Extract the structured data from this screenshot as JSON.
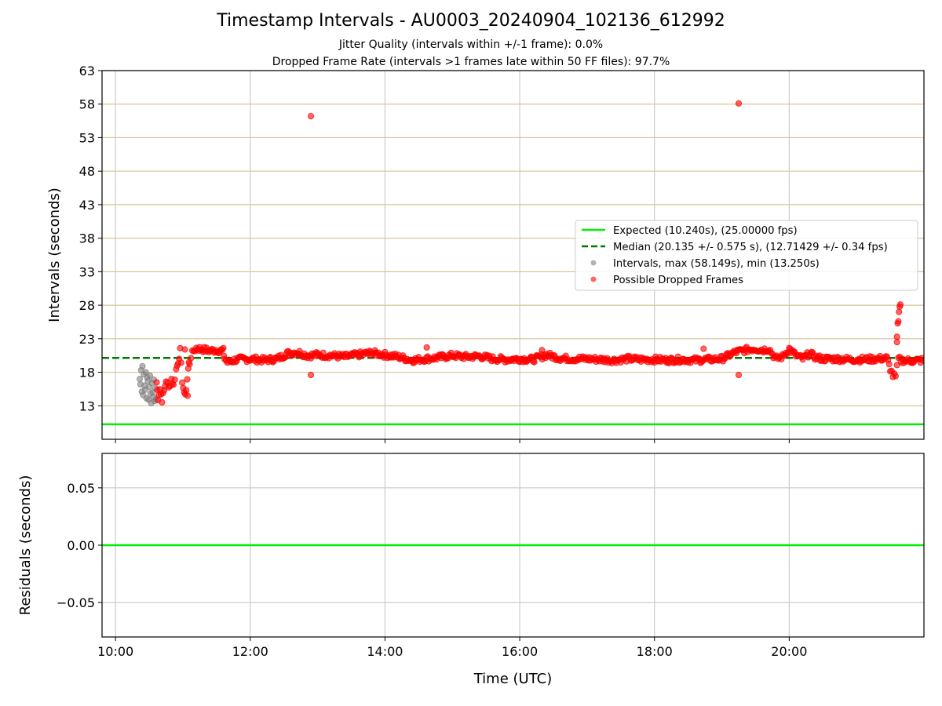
{
  "header": {
    "title": "Timestamp Intervals - AU0003_20240904_102136_612992",
    "subtitle1": "Jitter Quality (intervals within +/-1 frame): 0.0%",
    "subtitle2": "Dropped Frame Rate (intervals >1 frames late within 50 FF files): 97.7%"
  },
  "colors": {
    "expected": "#00ee00",
    "median": "#007700",
    "intervals": "#808080",
    "dropped": "#ff0000",
    "hgrid": "#d9c49a",
    "vgrid": "#cccccc"
  },
  "chart_data": [
    {
      "type": "scatter",
      "ylabel": "Intervals (seconds)",
      "xlim_hours": [
        9.8,
        22.0
      ],
      "ylim": [
        8.0,
        63.0
      ],
      "yticks": [
        13,
        18,
        23,
        28,
        33,
        38,
        43,
        48,
        53,
        58,
        63
      ],
      "xticks": [
        {
          "hour": 10,
          "label": "10:00"
        },
        {
          "hour": 12,
          "label": "12:00"
        },
        {
          "hour": 14,
          "label": "14:00"
        },
        {
          "hour": 16,
          "label": "16:00"
        },
        {
          "hour": 18,
          "label": "18:00"
        },
        {
          "hour": 20,
          "label": "20:00"
        }
      ],
      "grid": true,
      "legend_position": "center-right",
      "legend": [
        {
          "label": "Expected (10.240s), (25.00000 fps)",
          "kind": "line"
        },
        {
          "label": "Median (20.135 +/- 0.575 s), (12.71429 +/- 0.34 fps)",
          "kind": "dashed"
        },
        {
          "label": "Intervals, max (58.149s), min (13.250s)",
          "kind": "dot-gray"
        },
        {
          "label": "Possible Dropped Frames",
          "kind": "dot-red"
        }
      ],
      "expected_line": 10.24,
      "median_line": 20.135,
      "series": [
        {
          "name": "Intervals, max (58.149s), min (13.250s)",
          "points": [
            [
              10.36,
              17.0
            ],
            [
              10.37,
              16.2
            ],
            [
              10.38,
              18.3
            ],
            [
              10.39,
              15.1
            ],
            [
              10.4,
              18.9
            ],
            [
              10.41,
              14.6
            ],
            [
              10.42,
              17.7
            ],
            [
              10.43,
              16.0
            ],
            [
              10.44,
              15.4
            ],
            [
              10.45,
              18.0
            ],
            [
              10.46,
              14.1
            ],
            [
              10.47,
              17.2
            ],
            [
              10.48,
              16.7
            ],
            [
              10.49,
              13.9
            ],
            [
              10.5,
              15.8
            ],
            [
              10.51,
              17.5
            ],
            [
              10.52,
              14.8
            ],
            [
              10.53,
              13.4
            ],
            [
              10.54,
              16.4
            ],
            [
              10.55,
              15.0
            ],
            [
              10.56,
              14.3
            ],
            [
              10.57,
              16.9
            ],
            [
              10.58,
              13.7
            ],
            [
              10.59,
              15.6
            ],
            [
              10.6,
              14.0
            ]
          ]
        },
        {
          "name": "Possible Dropped Frames",
          "key_points": [
            [
              10.61,
              16.5
            ],
            [
              10.63,
              14.2
            ],
            [
              10.66,
              15.5
            ],
            [
              10.69,
              13.9
            ],
            [
              10.72,
              15.2
            ],
            [
              10.75,
              16.8
            ],
            [
              10.79,
              15.6
            ],
            [
              10.83,
              17.0
            ],
            [
              10.86,
              16.0
            ],
            [
              10.9,
              18.4
            ],
            [
              10.93,
              19.6
            ],
            [
              10.96,
              21.2
            ],
            [
              10.99,
              16.8
            ],
            [
              11.02,
              14.6
            ],
            [
              11.05,
              15.4
            ],
            [
              11.08,
              18.4
            ],
            [
              11.12,
              20.4
            ],
            [
              11.16,
              21.2
            ],
            [
              11.2,
              21.6
            ],
            [
              11.3,
              21.4
            ],
            [
              11.4,
              21.2
            ],
            [
              11.5,
              21.3
            ],
            [
              11.6,
              21.2
            ],
            [
              11.62,
              20.0
            ],
            [
              11.66,
              19.5
            ],
            [
              11.7,
              19.6
            ],
            [
              11.8,
              19.9
            ],
            [
              12.0,
              20.0
            ],
            [
              12.2,
              19.8
            ],
            [
              12.4,
              20.0
            ],
            [
              12.55,
              20.8
            ],
            [
              12.7,
              21.0
            ],
            [
              12.85,
              20.5
            ],
            [
              13.0,
              20.6
            ],
            [
              13.2,
              20.5
            ],
            [
              13.4,
              20.3
            ],
            [
              13.6,
              20.6
            ],
            [
              13.8,
              20.9
            ],
            [
              14.0,
              20.6
            ],
            [
              14.2,
              20.3
            ],
            [
              14.4,
              19.8
            ],
            [
              14.6,
              20.0
            ],
            [
              14.8,
              20.2
            ],
            [
              15.0,
              20.5
            ],
            [
              15.2,
              20.3
            ],
            [
              15.4,
              20.4
            ],
            [
              15.6,
              20.0
            ],
            [
              15.8,
              19.9
            ],
            [
              16.0,
              20.0
            ],
            [
              16.2,
              19.9
            ],
            [
              16.4,
              20.6
            ],
            [
              16.6,
              20.1
            ],
            [
              16.8,
              20.0
            ],
            [
              17.0,
              20.0
            ],
            [
              17.2,
              19.9
            ],
            [
              17.4,
              19.8
            ],
            [
              17.6,
              20.0
            ],
            [
              17.8,
              19.9
            ],
            [
              18.0,
              19.9
            ],
            [
              18.2,
              19.8
            ],
            [
              18.4,
              19.9
            ],
            [
              18.6,
              19.8
            ],
            [
              18.8,
              19.9
            ],
            [
              19.0,
              20.0
            ],
            [
              19.1,
              20.5
            ],
            [
              19.2,
              21.0
            ],
            [
              19.3,
              21.2
            ],
            [
              19.4,
              21.4
            ],
            [
              19.5,
              21.5
            ],
            [
              19.6,
              21.3
            ],
            [
              19.7,
              21.5
            ],
            [
              19.8,
              20.0
            ],
            [
              19.9,
              20.3
            ],
            [
              20.0,
              21.5
            ],
            [
              20.1,
              20.5
            ],
            [
              20.2,
              20.0
            ],
            [
              20.3,
              20.8
            ],
            [
              20.4,
              20.2
            ],
            [
              20.5,
              20.0
            ],
            [
              20.7,
              20.0
            ],
            [
              20.9,
              19.9
            ],
            [
              21.1,
              19.9
            ],
            [
              21.3,
              20.0
            ],
            [
              21.45,
              20.1
            ],
            [
              21.5,
              18.5
            ],
            [
              21.54,
              17.5
            ],
            [
              21.58,
              17.3
            ],
            [
              21.62,
              20.0
            ],
            [
              21.66,
              19.8
            ],
            [
              21.8,
              19.7
            ],
            [
              22.0,
              19.8
            ]
          ],
          "outliers": [
            [
              11.03,
              21.4
            ],
            [
              11.07,
              14.5
            ],
            [
              11.09,
              19.5
            ],
            [
              12.9,
              56.2
            ],
            [
              12.9,
              17.6
            ],
            [
              14.62,
              21.7
            ],
            [
              16.33,
              21.3
            ],
            [
              18.73,
              21.5
            ],
            [
              19.25,
              58.1
            ],
            [
              19.25,
              17.6
            ],
            [
              21.6,
              22.5
            ],
            [
              21.6,
              23.3
            ],
            [
              21.61,
              25.3
            ],
            [
              21.62,
              25.6
            ],
            [
              21.63,
              27.0
            ],
            [
              21.64,
              27.8
            ],
            [
              21.65,
              28.1
            ]
          ]
        }
      ]
    },
    {
      "type": "line",
      "ylabel": "Residuals (seconds)",
      "xlabel": "Time (UTC)",
      "xlim_hours": [
        9.8,
        22.0
      ],
      "ylim": [
        -0.08,
        0.08
      ],
      "yticks": [
        {
          "value": 0.05,
          "label": "0.05"
        },
        {
          "value": 0.0,
          "label": "0.00"
        },
        {
          "value": -0.05,
          "label": "−0.05"
        }
      ],
      "grid": true,
      "series": [
        {
          "name": "Residuals",
          "values": [
            0.0
          ]
        }
      ]
    }
  ]
}
